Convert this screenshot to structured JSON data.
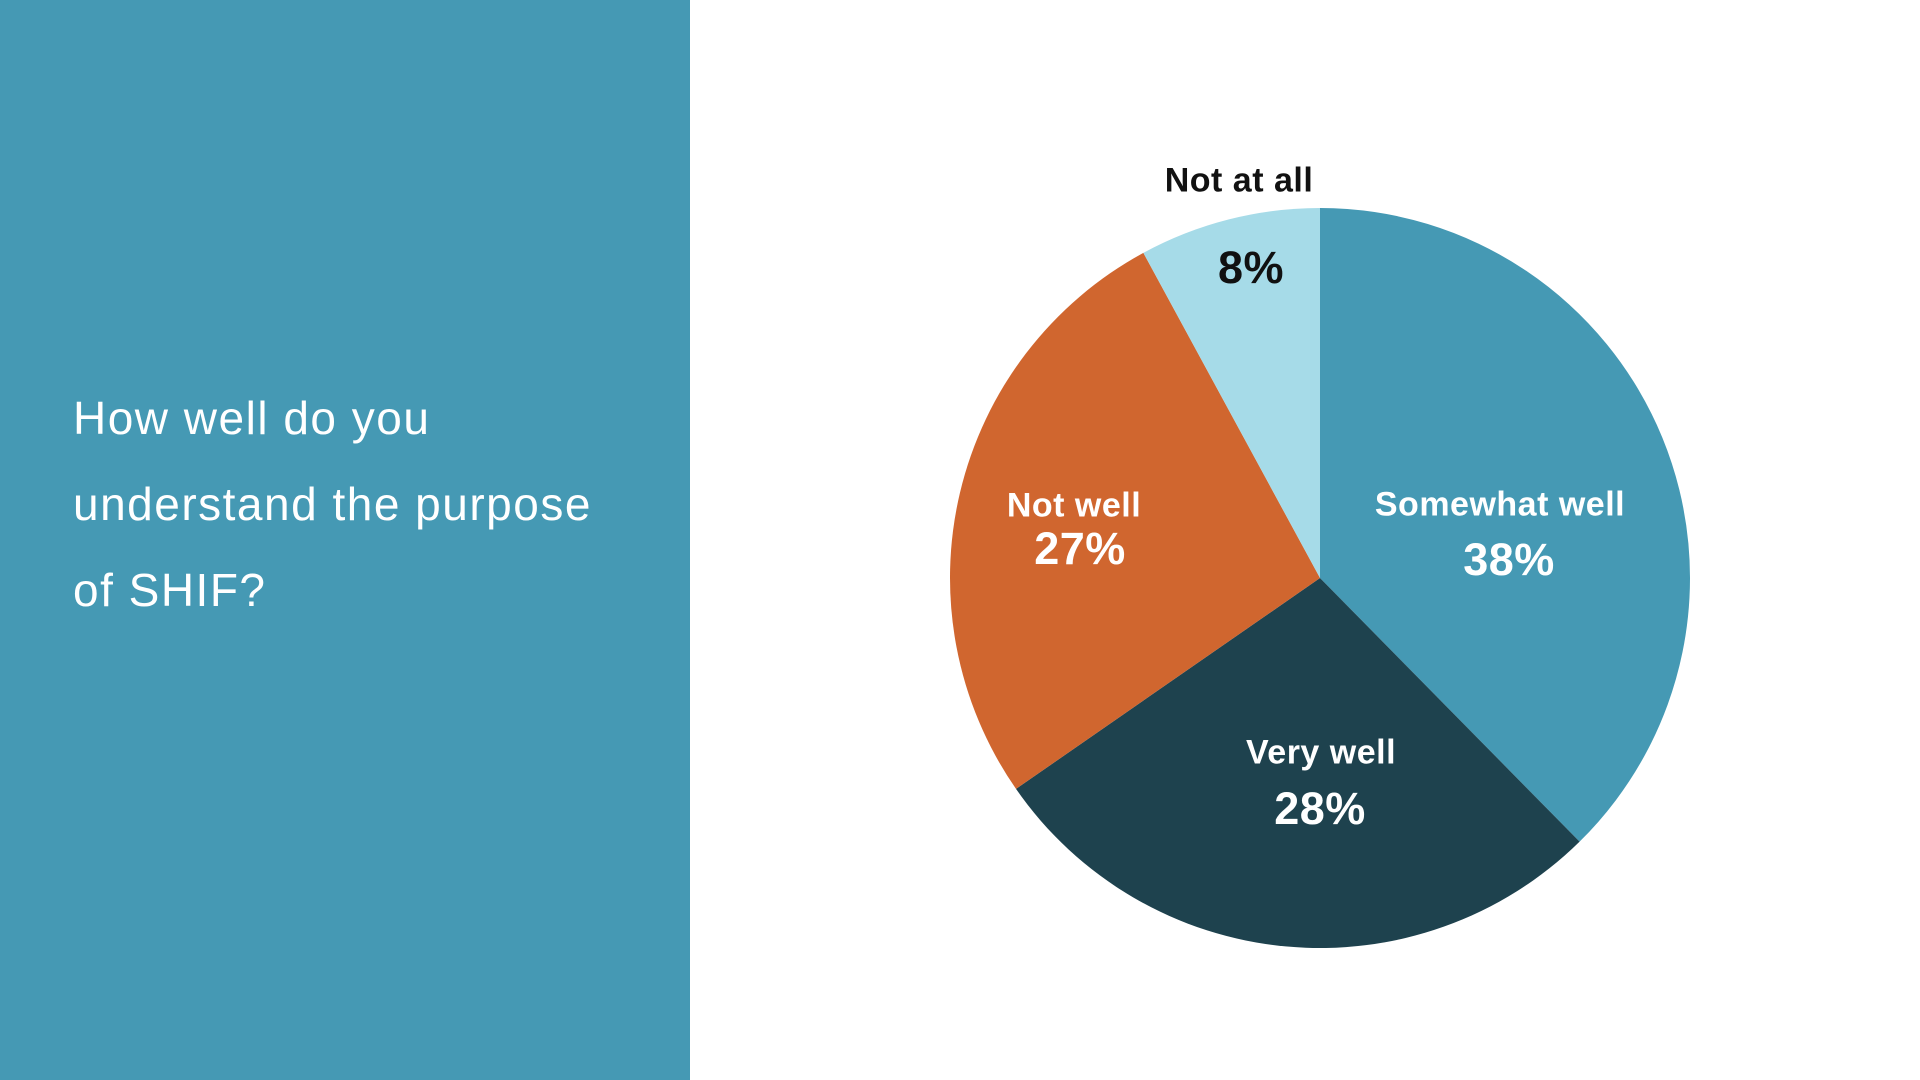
{
  "slide": {
    "background": "#FFFFFF"
  },
  "left_panel": {
    "background": "#4599B4",
    "text_color": "#FFFFFF",
    "title_full": "How well do you understand the purpose of SHIF?",
    "title_lines": [
      "How well do you",
      "understand the purpose",
      "of SHIF?"
    ]
  },
  "chart_data": {
    "type": "pie",
    "title": "How well do you understand the purpose of SHIF?",
    "legend": "none",
    "start_angle": "12 o'clock",
    "direction": "clockwise",
    "categories": [
      "Somewhat well",
      "Very well",
      "Not well",
      "Not at all"
    ],
    "values": [
      38,
      28,
      27,
      8
    ],
    "slices": [
      {
        "label": "Somewhat well",
        "value": 38,
        "display": "38%",
        "color": "#4599B4",
        "label_color": "#FFFFFF",
        "label_position": "inside"
      },
      {
        "label": "Very well",
        "value": 28,
        "display": "28%",
        "color": "#1E424E",
        "label_color": "#FFFFFF",
        "label_position": "inside"
      },
      {
        "label": "Not well",
        "value": 27,
        "display": "27%",
        "color": "#D0662F",
        "label_color": "#FFFFFF",
        "label_position": "inside"
      },
      {
        "label": "Not at all",
        "value": 8,
        "display": "8%",
        "color": "#A6DBE8",
        "label_color": "#111111",
        "label_position": "outside-top"
      }
    ]
  }
}
